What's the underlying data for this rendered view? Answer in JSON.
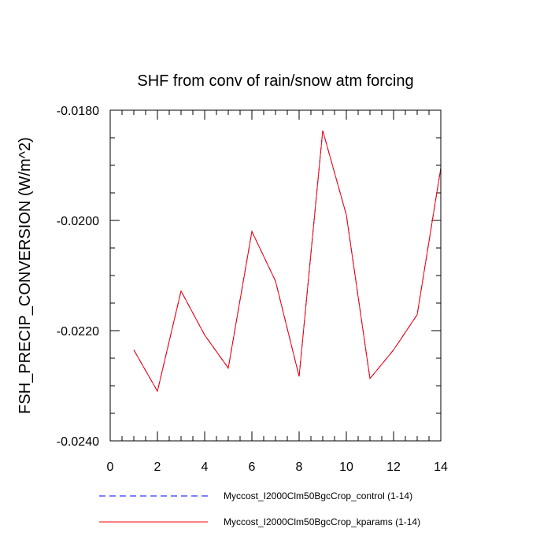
{
  "chart_data": {
    "type": "line",
    "title": "SHF from conv of rain/snow atm forcing",
    "xlabel": "",
    "ylabel": "FSH_PRECIP_CONVERSION  (W/m^2)",
    "xlim": [
      0,
      14
    ],
    "ylim": [
      -0.024,
      -0.018
    ],
    "xticks": [
      0,
      2,
      4,
      6,
      8,
      10,
      12,
      14
    ],
    "xtick_labels": [
      "0",
      "2",
      "4",
      "6",
      "8",
      "10",
      "12",
      "14"
    ],
    "yticks": [
      -0.024,
      -0.022,
      -0.02,
      -0.018
    ],
    "ytick_labels": [
      "-0.0240",
      "-0.0220",
      "-0.0200",
      "-0.0180"
    ],
    "grid": false,
    "legend_placement": "bottom",
    "x": [
      1,
      2,
      3,
      4,
      5,
      6,
      7,
      8,
      9,
      10,
      11,
      12,
      13,
      14
    ],
    "series": [
      {
        "name": "Myccost_I2000Clm50BgcCrop_control (1-14)",
        "color": "#0000ff",
        "style": "dashed",
        "values": [
          -0.02235,
          -0.0231,
          -0.02128,
          -0.02208,
          -0.02268,
          -0.0202,
          -0.0211,
          -0.02283,
          -0.01837,
          -0.0199,
          -0.02287,
          -0.02235,
          -0.02171,
          -0.01905
        ]
      },
      {
        "name": "Myccost_I2000Clm50BgcCrop_kparams (1-14)",
        "color": "#ff0000",
        "style": "solid",
        "values": [
          -0.02235,
          -0.0231,
          -0.02128,
          -0.02208,
          -0.02268,
          -0.0202,
          -0.0211,
          -0.02283,
          -0.01837,
          -0.0199,
          -0.02287,
          -0.02235,
          -0.02171,
          -0.01905
        ]
      }
    ]
  }
}
